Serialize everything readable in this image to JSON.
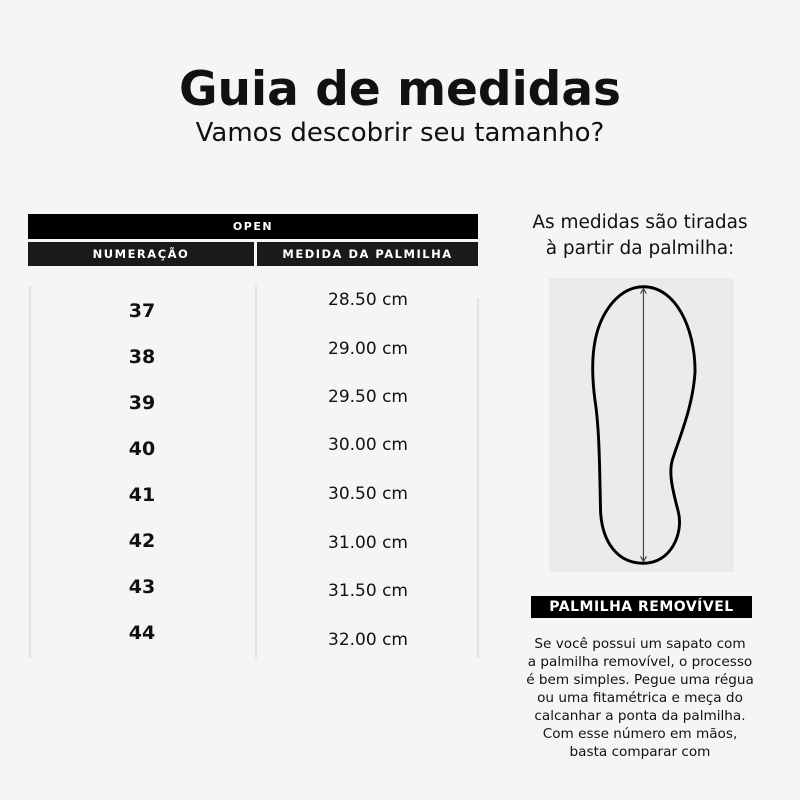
{
  "header": {
    "title": "Guia de medidas",
    "subtitle": "Vamos descobrir seu tamanho?"
  },
  "table": {
    "group": "OPEN",
    "columns": [
      "NUMERAÇÃO",
      "MEDIDA DA PALMILHA"
    ],
    "rows": [
      {
        "size": "37",
        "measure": "28.50 cm"
      },
      {
        "size": "38",
        "measure": "29.00 cm"
      },
      {
        "size": "39",
        "measure": "29.50 cm"
      },
      {
        "size": "40",
        "measure": "30.00 cm"
      },
      {
        "size": "41",
        "measure": "30.50 cm"
      },
      {
        "size": "42",
        "measure": "31.00 cm"
      },
      {
        "size": "43",
        "measure": "31.50 cm"
      },
      {
        "size": "44",
        "measure": "32.00 cm"
      }
    ]
  },
  "side": {
    "intro": "As medidas são tiradas\nà partir da palmilha:",
    "image_icon": "insole-outline-with-length-arrow",
    "label": "PALMILHA REMOVÍVEL",
    "description": "Se você possui um sapato com\na palmilha removível, o processo\né bem simples. Pegue uma régua\nou uma fitamétrica e meça do\ncalcanhar a ponta da palmilha.\nCom esse número em mãos,\nbasta comparar com"
  }
}
